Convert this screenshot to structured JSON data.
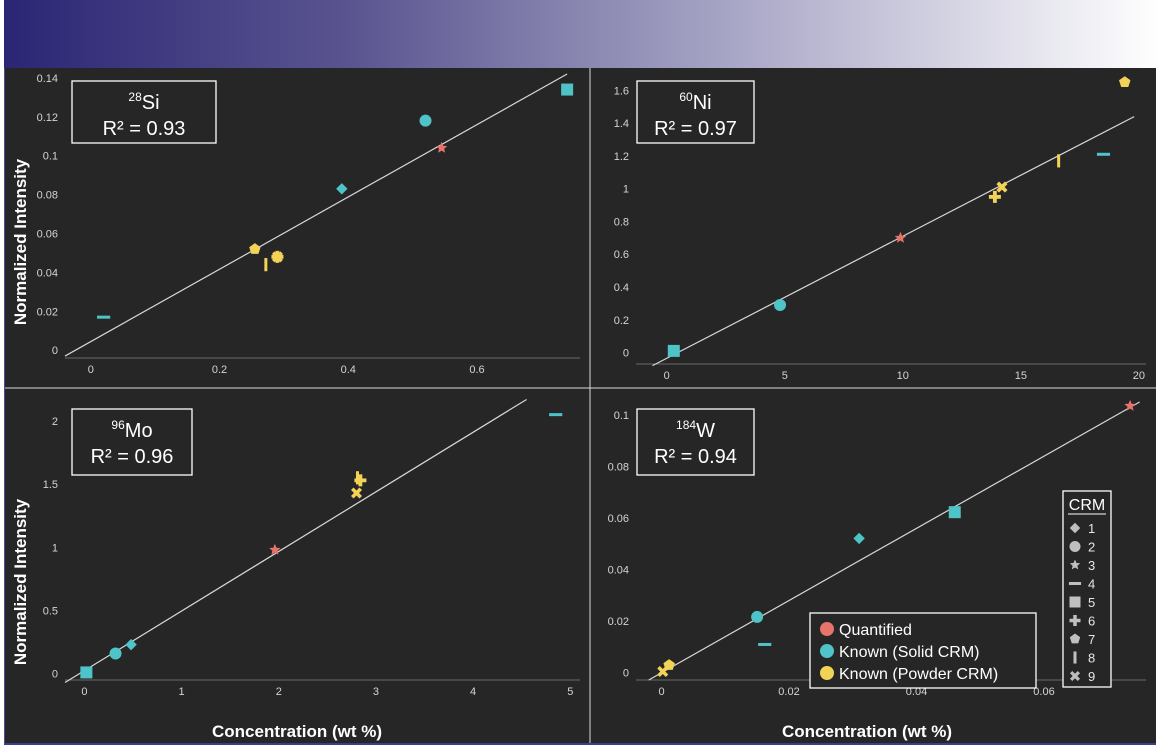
{
  "colors": {
    "quantified": "#e8736b",
    "solid": "#4fc4c8",
    "powder": "#f2d357",
    "fitline": "#d8d8d8",
    "crm_marker": "#bfbfbf"
  },
  "shared_axes": {
    "ylabel": "Normalized Intensity",
    "xlabel": "Concentration (wt %)"
  },
  "legend": {
    "items": [
      {
        "label": "Quantified",
        "color_key": "quantified"
      },
      {
        "label": "Known (Solid CRM)",
        "color_key": "solid"
      },
      {
        "label": "Known (Powder CRM)",
        "color_key": "powder"
      }
    ]
  },
  "crm_legend": {
    "title": "CRM",
    "items": [
      {
        "label": "1",
        "marker": "diamond"
      },
      {
        "label": "2",
        "marker": "circle"
      },
      {
        "label": "3",
        "marker": "star"
      },
      {
        "label": "4",
        "marker": "dash"
      },
      {
        "label": "5",
        "marker": "square"
      },
      {
        "label": "6",
        "marker": "plus"
      },
      {
        "label": "7",
        "marker": "pentagon"
      },
      {
        "label": "8",
        "marker": "bar"
      },
      {
        "label": "9",
        "marker": "cross"
      }
    ]
  },
  "chart_data": [
    {
      "type": "scatter",
      "isotope_mass": "28",
      "element": "Si",
      "r2_label": "R² =  0.93",
      "xlim": [
        -0.04,
        0.76
      ],
      "ylim": [
        -0.004,
        0.142
      ],
      "xticks": [
        0,
        0.2,
        0.4,
        0.6
      ],
      "xtick_labels": [
        "0",
        "0.2",
        "0.4",
        "0.6"
      ],
      "yticks": [
        0,
        0.02,
        0.04,
        0.06,
        0.08,
        0.1,
        0.12,
        0.14
      ],
      "ytick_labels": [
        "0",
        "0.02",
        "0.04",
        "0.06",
        "0.08",
        "0.1",
        "0.12",
        "0.14"
      ],
      "fit_line": [
        [
          -0.04,
          -0.003
        ],
        [
          0.74,
          0.142
        ]
      ],
      "points": [
        {
          "crm": "4",
          "marker": "dash",
          "group": "solid",
          "x": 0.02,
          "y": 0.017
        },
        {
          "crm": "7",
          "marker": "pentagon",
          "group": "powder",
          "x": 0.255,
          "y": 0.052
        },
        {
          "crm": "8",
          "marker": "bar",
          "group": "powder",
          "x": 0.272,
          "y": 0.044
        },
        {
          "crm": "6",
          "marker": "plus",
          "group": "powder",
          "x": 0.29,
          "y": 0.048
        },
        {
          "crm": "9",
          "marker": "cross",
          "group": "powder",
          "x": 0.29,
          "y": 0.048
        },
        {
          "crm": "1",
          "marker": "diamond",
          "group": "solid",
          "x": 0.39,
          "y": 0.083
        },
        {
          "crm": "2",
          "marker": "circle",
          "group": "solid",
          "x": 0.52,
          "y": 0.118
        },
        {
          "crm": "3",
          "marker": "star",
          "group": "quantified",
          "x": 0.545,
          "y": 0.104
        },
        {
          "crm": "5",
          "marker": "square",
          "group": "solid",
          "x": 0.74,
          "y": 0.134
        }
      ]
    },
    {
      "type": "scatter",
      "isotope_mass": "60",
      "element": "Ni",
      "r2_label": "R² =  0.97",
      "xlim": [
        -1.3,
        20.3
      ],
      "ylim": [
        -0.07,
        1.7
      ],
      "xticks": [
        0,
        5,
        10,
        15,
        20
      ],
      "xtick_labels": [
        "0",
        "5",
        "10",
        "15",
        "20"
      ],
      "yticks": [
        0,
        0.2,
        0.4,
        0.6,
        0.8,
        1,
        1.2,
        1.4,
        1.6
      ],
      "ytick_labels": [
        "0",
        "0.2",
        "0.4",
        "0.6",
        "0.8",
        "1",
        "1.2",
        "1.4",
        "1.6"
      ],
      "fit_line": [
        [
          -0.6,
          -0.08
        ],
        [
          19.8,
          1.44
        ]
      ],
      "points": [
        {
          "crm": "5",
          "marker": "square",
          "group": "solid",
          "x": 0.3,
          "y": 0.01
        },
        {
          "crm": "2",
          "marker": "circle",
          "group": "solid",
          "x": 4.8,
          "y": 0.29
        },
        {
          "crm": "3",
          "marker": "star",
          "group": "quantified",
          "x": 9.9,
          "y": 0.7
        },
        {
          "crm": "6",
          "marker": "plus",
          "group": "powder",
          "x": 13.9,
          "y": 0.95
        },
        {
          "crm": "9",
          "marker": "cross",
          "group": "powder",
          "x": 14.2,
          "y": 1.01
        },
        {
          "crm": "8",
          "marker": "bar",
          "group": "powder",
          "x": 16.6,
          "y": 1.17
        },
        {
          "crm": "4",
          "marker": "dash",
          "group": "solid",
          "x": 18.5,
          "y": 1.21
        },
        {
          "crm": "7",
          "marker": "pentagon",
          "group": "powder",
          "x": 19.4,
          "y": 1.65
        }
      ]
    },
    {
      "type": "scatter",
      "isotope_mass": "96",
      "element": "Mo",
      "r2_label": "R² =  0.96",
      "xlim": [
        -0.2,
        5.1
      ],
      "ylim": [
        -0.05,
        2.15
      ],
      "xticks": [
        0,
        1,
        2,
        3,
        4,
        5
      ],
      "xtick_labels": [
        "0",
        "1",
        "2",
        "3",
        "4",
        "5"
      ],
      "yticks": [
        0,
        0.5,
        1,
        1.5,
        2
      ],
      "ytick_labels": [
        "0",
        "0.5",
        "1",
        "1.5",
        "2"
      ],
      "fit_line": [
        [
          -0.2,
          -0.07
        ],
        [
          4.55,
          2.17
        ]
      ],
      "points": [
        {
          "crm": "5",
          "marker": "square",
          "group": "solid",
          "x": 0.02,
          "y": 0.01
        },
        {
          "crm": "2",
          "marker": "circle",
          "group": "solid",
          "x": 0.32,
          "y": 0.16
        },
        {
          "crm": "1",
          "marker": "diamond",
          "group": "solid",
          "x": 0.48,
          "y": 0.23
        },
        {
          "crm": "3",
          "marker": "star",
          "group": "quantified",
          "x": 1.96,
          "y": 0.98
        },
        {
          "crm": "9",
          "marker": "cross",
          "group": "powder",
          "x": 2.8,
          "y": 1.43
        },
        {
          "crm": "6",
          "marker": "plus",
          "group": "powder",
          "x": 2.84,
          "y": 1.53
        },
        {
          "crm": "8",
          "marker": "bar",
          "group": "powder",
          "x": 2.81,
          "y": 1.55
        },
        {
          "crm": "4",
          "marker": "dash",
          "group": "solid",
          "x": 4.85,
          "y": 2.05
        }
      ]
    },
    {
      "type": "scatter",
      "isotope_mass": "184",
      "element": "W",
      "r2_label": "R² =  0.94",
      "xlim": [
        -0.004,
        0.076
      ],
      "ylim": [
        -0.003,
        0.105
      ],
      "xticks": [
        0,
        0.02,
        0.04,
        0.06
      ],
      "xtick_labels": [
        "0",
        "0.02",
        "0.04",
        "0.06"
      ],
      "yticks": [
        0,
        0.02,
        0.04,
        0.06,
        0.08,
        0.1
      ],
      "ytick_labels": [
        "0",
        "0.02",
        "0.04",
        "0.06",
        "0.08",
        "0.1"
      ],
      "fit_line": [
        [
          -0.002,
          -0.003
        ],
        [
          0.075,
          0.105
        ]
      ],
      "points": [
        {
          "crm": "9",
          "marker": "cross",
          "group": "powder",
          "x": 0.0002,
          "y": 0.0003
        },
        {
          "crm": "7",
          "marker": "pentagon",
          "group": "powder",
          "x": 0.0012,
          "y": 0.0028
        },
        {
          "crm": "2",
          "marker": "circle",
          "group": "solid",
          "x": 0.015,
          "y": 0.0215
        },
        {
          "crm": "4",
          "marker": "dash",
          "group": "solid",
          "x": 0.0162,
          "y": 0.0108
        },
        {
          "crm": "1",
          "marker": "diamond",
          "group": "solid",
          "x": 0.031,
          "y": 0.052
        },
        {
          "crm": "5",
          "marker": "square",
          "group": "solid",
          "x": 0.046,
          "y": 0.0622
        },
        {
          "crm": "3",
          "marker": "star",
          "group": "quantified",
          "x": 0.0735,
          "y": 0.1035
        }
      ]
    }
  ]
}
